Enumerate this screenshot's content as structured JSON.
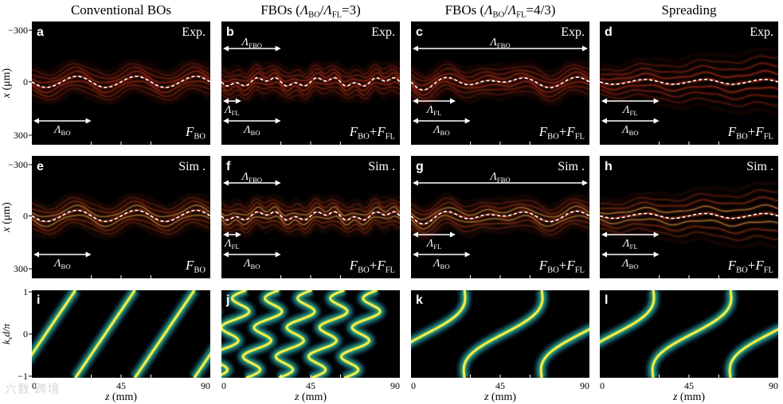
{
  "figure": {
    "column_titles": [
      {
        "pre": "Conventional BOs",
        "sym1": "",
        "sub1": "",
        "mid": "",
        "sym2": "",
        "sub2": "",
        "post": ""
      },
      {
        "pre": "FBOs (",
        "sym1": "Λ",
        "sub1": "BO",
        "mid": "/",
        "sym2": "Λ",
        "sub2": "FL",
        "post": "=3)"
      },
      {
        "pre": "FBOs (",
        "sym1": "Λ",
        "sub1": "BO",
        "mid": "/",
        "sym2": "Λ",
        "sub2": "FL",
        "post": "=4/3)"
      },
      {
        "pre": "Spreading",
        "sym1": "",
        "sub1": "",
        "mid": "",
        "sym2": "",
        "sub2": "",
        "post": ""
      }
    ],
    "panel_letters": [
      "a",
      "b",
      "c",
      "d",
      "e",
      "f",
      "g",
      "h",
      "i",
      "j",
      "k",
      "l"
    ],
    "row_tags": [
      "Exp.",
      "Sim ."
    ],
    "row_ylabel": {
      "sym": "x",
      "unit": "(μm)"
    },
    "row_yticks": [
      "−300",
      "0",
      "300"
    ],
    "k_ylabel": {
      "sym": "k",
      "sub": "x",
      "rest": "d/π"
    },
    "k_yticks": [
      "1",
      "0",
      "−1"
    ],
    "xlabel": {
      "sym": "z",
      "unit": "(mm)"
    },
    "xticks": [
      "0",
      "45",
      "90"
    ],
    "force_labels": [
      [
        {
          "sym": "F",
          "sub": "BO"
        }
      ],
      [
        {
          "sym": "F",
          "sub": "BO"
        },
        {
          "sym": "F",
          "sub": "FL"
        }
      ],
      [
        {
          "sym": "F",
          "sub": "BO"
        },
        {
          "sym": "F",
          "sub": "FL"
        }
      ],
      [
        {
          "sym": "F",
          "sub": "BO"
        },
        {
          "sym": "F",
          "sub": "FL"
        }
      ]
    ],
    "period_labels": {
      "fbo": {
        "sym": "Λ",
        "sub": "FBO"
      },
      "bo": {
        "sym": "Λ",
        "sub": "BO"
      },
      "fl": {
        "sym": "Λ",
        "sub": "FL"
      }
    },
    "watermark": "六数 跨境"
  },
  "colors": {
    "exp_wave": "#d9391f",
    "sim_wave": "#e14a24",
    "sim_edge": "#f2c24a",
    "centroid": "#ffffff",
    "panel_bg": "#000000",
    "k_low": "#08081a",
    "k_mid": "#1f6a8a",
    "k_high": "#2fb07a",
    "k_peak": "#f3e84a"
  },
  "chart_data": [
    {
      "type": "heatmap",
      "row": "Exp.",
      "panels": [
        "a",
        "b",
        "c",
        "d"
      ],
      "x": {
        "label": "z (mm)",
        "range": [
          0,
          90
        ]
      },
      "y": {
        "label": "x (μm)",
        "range": [
          -300,
          300
        ]
      },
      "series": [
        {
          "panel": "a",
          "oscillation_amplitude_um": 25,
          "bo_period_mm": 30,
          "fl_period_mm": null,
          "spreading": false
        },
        {
          "panel": "b",
          "oscillation_amplitude_um": 15,
          "bo_period_mm": 30,
          "fl_period_mm": 10,
          "spreading": false
        },
        {
          "panel": "c",
          "oscillation_amplitude_um": 30,
          "bo_period_mm": 30,
          "fl_period_mm": 22.5,
          "spreading": false
        },
        {
          "panel": "d",
          "oscillation_amplitude_um": 10,
          "bo_period_mm": 30,
          "fl_period_mm": 30,
          "spreading": true
        }
      ]
    },
    {
      "type": "heatmap",
      "row": "Sim .",
      "panels": [
        "e",
        "f",
        "g",
        "h"
      ],
      "x": {
        "label": "z (mm)",
        "range": [
          0,
          90
        ]
      },
      "y": {
        "label": "x (μm)",
        "range": [
          -300,
          300
        ]
      }
    },
    {
      "type": "heatmap",
      "row": "momentum",
      "panels": [
        "i",
        "j",
        "k",
        "l"
      ],
      "x": {
        "label": "z (mm)",
        "range": [
          0,
          90
        ],
        "ticks": [
          0,
          45,
          90
        ]
      },
      "y": {
        "label": "k_x d/π",
        "range": [
          -1,
          1
        ],
        "ticks": [
          -1,
          0,
          1
        ]
      }
    }
  ]
}
